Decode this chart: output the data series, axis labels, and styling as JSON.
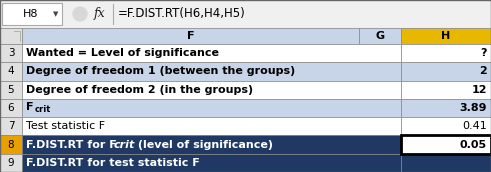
{
  "formula_bar_cell": "H8",
  "formula_bar_formula": "=F.DIST.RT(H6,H4,H5)",
  "col_headers": [
    "F",
    "G",
    "H"
  ],
  "rows": [
    {
      "row": "3",
      "col_f": "Wanted = Level of significance",
      "col_h": "?",
      "f_bold": true,
      "row_bg": "white",
      "h_bg": "white"
    },
    {
      "row": "4",
      "col_f": "Degree of freedom 1 (between the groups)",
      "col_h": "2",
      "f_bold": true,
      "row_bg": "#c8d4e8",
      "h_bg": "#c8d4e8"
    },
    {
      "row": "5",
      "col_f": "Degree of freedom 2 (in the groups)",
      "col_h": "12",
      "f_bold": true,
      "row_bg": "white",
      "h_bg": "white"
    },
    {
      "row": "6",
      "col_f": "F_crit",
      "col_h": "3.89",
      "f_bold": true,
      "row_bg": "#c8d4e8",
      "h_bg": "#c8d4e8"
    },
    {
      "row": "7",
      "col_f": "Test statistic F",
      "col_h": "0.41",
      "f_bold": false,
      "row_bg": "white",
      "h_bg": "white"
    },
    {
      "row": "8",
      "col_f": "F.DIST.RT for Fcrit (level of significance)",
      "col_h": "0.05",
      "f_bold": true,
      "row_bg": "#1f3864",
      "f_fg": "white",
      "h_bg": "white",
      "h_fg": "black",
      "selected": true,
      "rn_bg": "#e8a000"
    },
    {
      "row": "9",
      "col_f": "F.DIST.RT for test statistic F",
      "col_h": "",
      "f_bold": true,
      "row_bg": "#1f3864",
      "f_fg": "white",
      "h_bg": "#1f3864",
      "h_fg": "white"
    }
  ],
  "header_bg": "#c8d4e8",
  "h_col_bg": "#e8b800",
  "rn_bg": "#e0e0e0",
  "formula_bar_bg": "#f0f0f0"
}
